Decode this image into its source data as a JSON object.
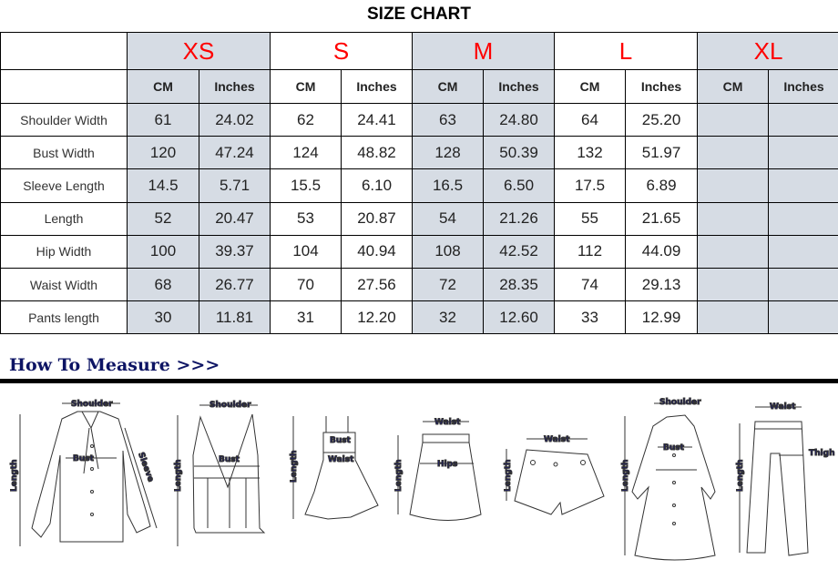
{
  "title": "SIZE CHART",
  "sizes": [
    "XS",
    "S",
    "M",
    "L",
    "XL"
  ],
  "units": {
    "cm": "CM",
    "in": "Inches"
  },
  "rows": [
    {
      "label": "Shoulder Width",
      "values": [
        "61",
        "24.02",
        "62",
        "24.41",
        "63",
        "24.80",
        "64",
        "25.20",
        "",
        ""
      ]
    },
    {
      "label": "Bust Width",
      "values": [
        "120",
        "47.24",
        "124",
        "48.82",
        "128",
        "50.39",
        "132",
        "51.97",
        "",
        ""
      ]
    },
    {
      "label": "Sleeve Length",
      "values": [
        "14.5",
        "5.71",
        "15.5",
        "6.10",
        "16.5",
        "6.50",
        "17.5",
        "6.89",
        "",
        ""
      ]
    },
    {
      "label": "Length",
      "values": [
        "52",
        "20.47",
        "53",
        "20.87",
        "54",
        "21.26",
        "55",
        "21.65",
        "",
        ""
      ]
    },
    {
      "label": "Hip Width",
      "values": [
        "100",
        "39.37",
        "104",
        "40.94",
        "108",
        "42.52",
        "112",
        "44.09",
        "",
        ""
      ]
    },
    {
      "label": "Waist Width",
      "values": [
        "68",
        "26.77",
        "70",
        "27.56",
        "72",
        "28.35",
        "74",
        "29.13",
        "",
        ""
      ]
    },
    {
      "label": "Pants length",
      "values": [
        "30",
        "11.81",
        "31",
        "12.20",
        "32",
        "12.60",
        "33",
        "12.99",
        "",
        ""
      ]
    }
  ],
  "colors": {
    "shade": "#d6dce4",
    "size_text": "#ff0000",
    "measure_heading": "#0d1464"
  },
  "measure": {
    "heading": "How To Measure >>>",
    "labels": {
      "shoulder": "Shoulder",
      "bust": "Bust",
      "sleeve": "Sleeve",
      "length": "Length",
      "waist": "Waist",
      "hips": "Hips",
      "thigh": "Thigh"
    }
  }
}
